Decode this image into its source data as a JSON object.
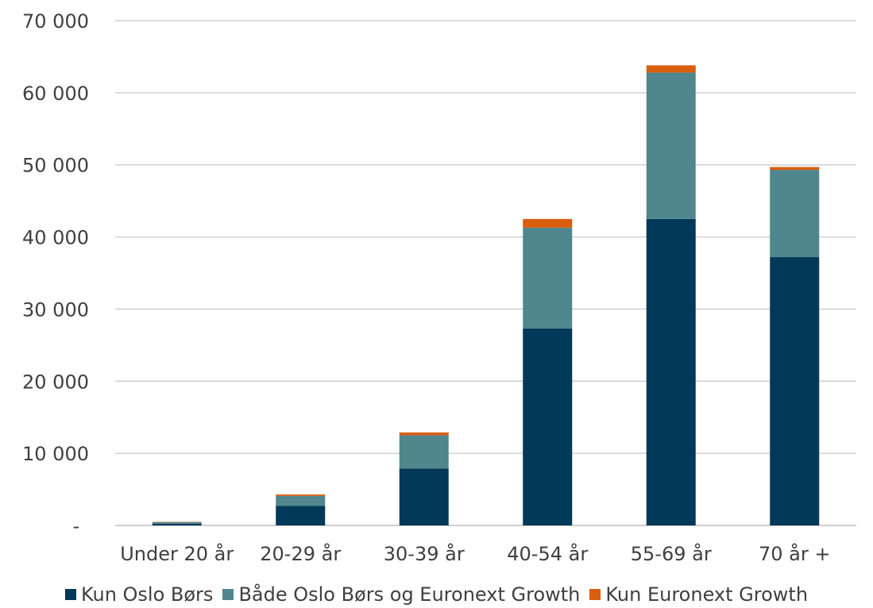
{
  "chart_data": {
    "type": "bar",
    "stacked": true,
    "categories": [
      "Under 20 år",
      "20-29 år",
      "30-39 år",
      "40-54 år",
      "55-69 år",
      "70 år +"
    ],
    "series": [
      {
        "name": "Kun Oslo Børs",
        "color": "#023858",
        "values": [
          250,
          2700,
          7900,
          27300,
          42500,
          37200
        ]
      },
      {
        "name": "Både Oslo Børs og Euronext Growth",
        "color": "#50868d",
        "values": [
          200,
          1400,
          4600,
          14000,
          20300,
          12100
        ]
      },
      {
        "name": "Kun Euronext Growth",
        "color": "#d95e0e",
        "values": [
          50,
          200,
          400,
          1200,
          1000,
          400
        ]
      }
    ],
    "y_ticks": [
      "-",
      "10 000",
      "20 000",
      "30 000",
      "40 000",
      "50 000",
      "60 000",
      "70 000"
    ],
    "ylim": [
      0,
      70000
    ],
    "grid": true,
    "legend_position": "bottom"
  }
}
